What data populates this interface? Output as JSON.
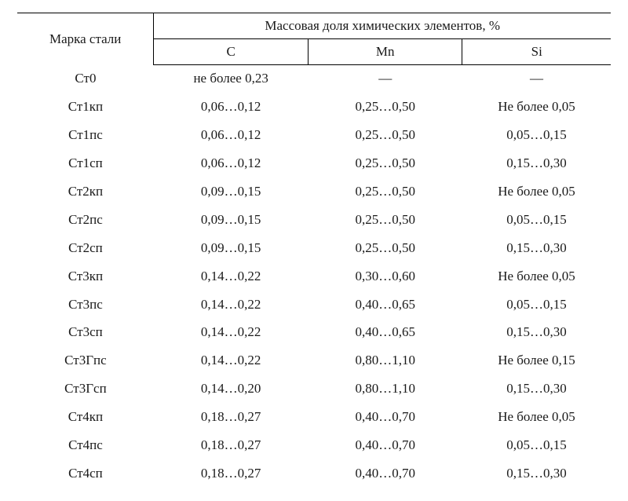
{
  "header": {
    "grade": "Марка стали",
    "group": "Массовая доля химических элементов, %",
    "c": "C",
    "mn": "Mn",
    "si": "Si"
  },
  "rows": [
    {
      "grade": "Ст0",
      "c": "не более 0,23",
      "mn": "—",
      "si": "—"
    },
    {
      "grade": "Ст1кп",
      "c": "0,06…0,12",
      "mn": "0,25…0,50",
      "si": "Не более 0,05"
    },
    {
      "grade": "Ст1пс",
      "c": "0,06…0,12",
      "mn": "0,25…0,50",
      "si": "0,05…0,15"
    },
    {
      "grade": "Ст1сп",
      "c": "0,06…0,12",
      "mn": "0,25…0,50",
      "si": "0,15…0,30"
    },
    {
      "grade": "Ст2кп",
      "c": "0,09…0,15",
      "mn": "0,25…0,50",
      "si": "Не более 0,05"
    },
    {
      "grade": "Ст2пс",
      "c": "0,09…0,15",
      "mn": "0,25…0,50",
      "si": "0,05…0,15"
    },
    {
      "grade": "Ст2сп",
      "c": "0,09…0,15",
      "mn": "0,25…0,50",
      "si": "0,15…0,30"
    },
    {
      "grade": "Ст3кп",
      "c": "0,14…0,22",
      "mn": "0,30…0,60",
      "si": "Не более 0,05"
    },
    {
      "grade": "Ст3пс",
      "c": "0,14…0,22",
      "mn": "0,40…0,65",
      "si": "0,05…0,15"
    },
    {
      "grade": "Ст3сп",
      "c": "0,14…0,22",
      "mn": "0,40…0,65",
      "si": "0,15…0,30"
    },
    {
      "grade": "Ст3Гпс",
      "c": "0,14…0,22",
      "mn": "0,80…1,10",
      "si": "Не более 0,15"
    },
    {
      "grade": "Ст3Гсп",
      "c": "0,14…0,20",
      "mn": "0,80…1,10",
      "si": "0,15…0,30"
    },
    {
      "grade": "Ст4кп",
      "c": "0,18…0,27",
      "mn": "0,40…0,70",
      "si": "Не более 0,05"
    },
    {
      "grade": "Ст4пс",
      "c": "0,18…0,27",
      "mn": "0,40…0,70",
      "si": "0,05…0,15"
    },
    {
      "grade": "Ст4сп",
      "c": "0,18…0,27",
      "mn": "0,40…0,70",
      "si": "0,15…0,30"
    }
  ]
}
